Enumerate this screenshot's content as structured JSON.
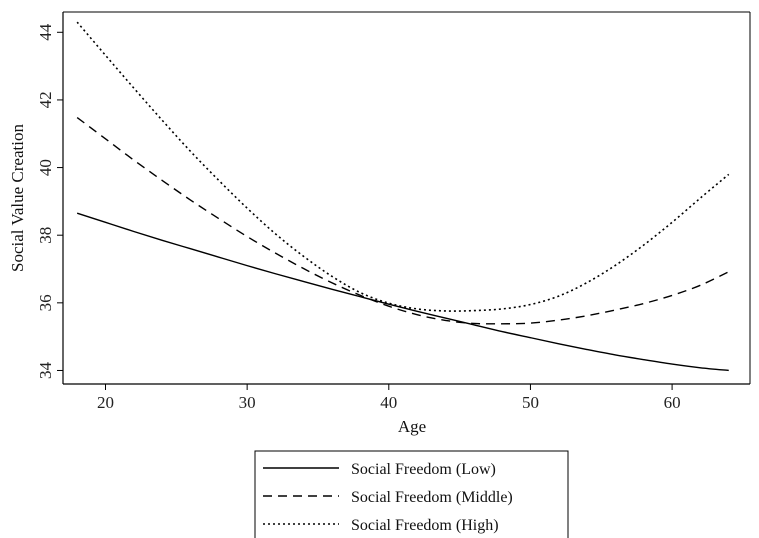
{
  "chart_data": {
    "type": "line",
    "title": "",
    "xlabel": "Age",
    "ylabel": "Social Value Creation",
    "xlim": [
      17,
      65.5
    ],
    "ylim": [
      33.6,
      44.6
    ],
    "xticks": [
      20,
      30,
      40,
      50,
      60
    ],
    "yticks": [
      34,
      36,
      38,
      40,
      42,
      44
    ],
    "grid": false,
    "legend_position": "bottom",
    "x": [
      18,
      20,
      22,
      24,
      26,
      28,
      30,
      32,
      34,
      36,
      38,
      40,
      42,
      44,
      46,
      48,
      50,
      52,
      54,
      56,
      58,
      60,
      62,
      64
    ],
    "series": [
      {
        "name": "Social Freedom (Low)",
        "style": "solid",
        "values": [
          38.65,
          38.38,
          38.11,
          37.85,
          37.6,
          37.35,
          37.1,
          36.86,
          36.63,
          36.4,
          36.18,
          35.96,
          35.75,
          35.55,
          35.35,
          35.15,
          34.97,
          34.79,
          34.62,
          34.46,
          34.32,
          34.19,
          34.08,
          34.0
        ]
      },
      {
        "name": "Social Freedom (Middle)",
        "style": "dashed",
        "values": [
          41.48,
          40.85,
          40.22,
          39.62,
          39.04,
          38.49,
          37.96,
          37.47,
          37.01,
          36.59,
          36.22,
          35.9,
          35.65,
          35.48,
          35.39,
          35.38,
          35.4,
          35.49,
          35.62,
          35.79,
          35.98,
          36.22,
          36.52,
          36.92
        ]
      },
      {
        "name": "Social Freedom (High)",
        "style": "dotted",
        "values": [
          44.3,
          43.32,
          42.35,
          41.4,
          40.48,
          39.62,
          38.8,
          38.04,
          37.37,
          36.78,
          36.3,
          35.99,
          35.82,
          35.76,
          35.77,
          35.82,
          35.95,
          36.2,
          36.6,
          37.11,
          37.71,
          38.38,
          39.1,
          39.8
        ]
      }
    ]
  }
}
